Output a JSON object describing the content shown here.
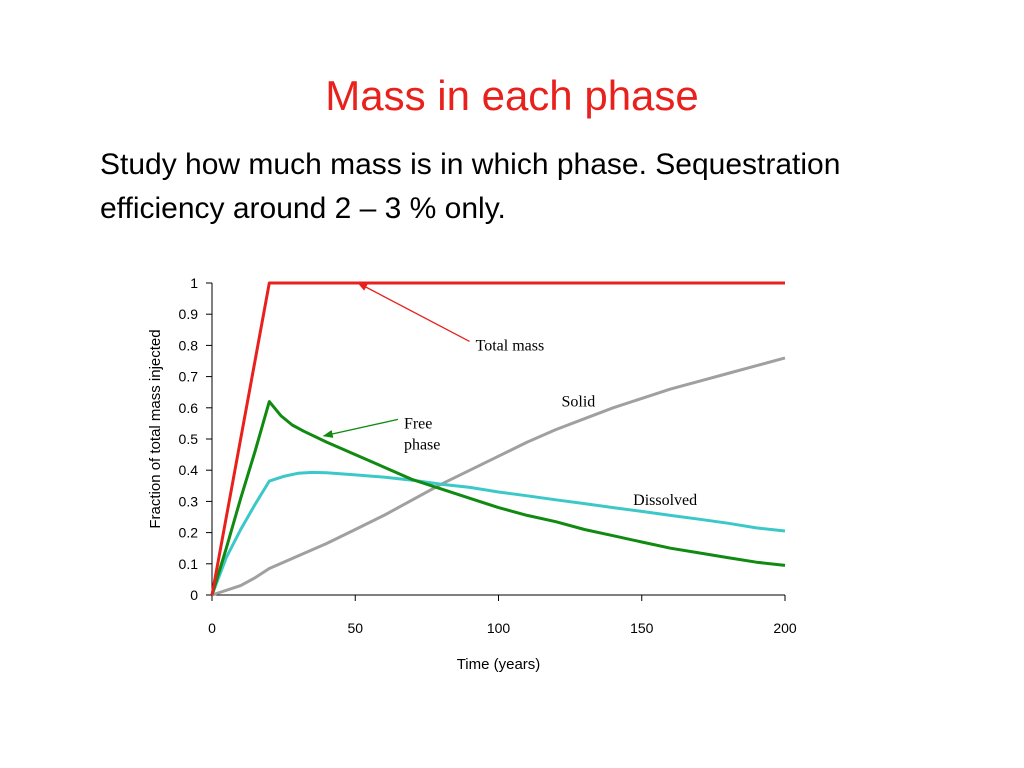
{
  "slide": {
    "title": "Mass in each phase",
    "body_lines": [
      "Study how much mass is in which phase.  Sequestration",
      "efficiency around 2 – 3 % only."
    ]
  },
  "chart_data": {
    "type": "line",
    "title": "",
    "xlabel": "Time (years)",
    "ylabel": "Fraction of total mass injected",
    "xlim": [
      0,
      200
    ],
    "ylim": [
      0,
      1
    ],
    "xticks": [
      0,
      50,
      100,
      150,
      200
    ],
    "yticks": [
      0,
      0.1,
      0.2,
      0.3,
      0.4,
      0.5,
      0.6,
      0.7,
      0.8,
      0.9,
      1
    ],
    "ytick_labels": [
      "0",
      "0.1",
      "0.2",
      "0.3",
      "0.4",
      "0.5",
      "0.6",
      "0.7",
      "0.8",
      "0.9",
      "1"
    ],
    "grid": false,
    "legend": "none",
    "series": [
      {
        "name": "Total mass",
        "color": "#e8211d",
        "points": [
          [
            0,
            0
          ],
          [
            20,
            1
          ],
          [
            200,
            1
          ]
        ]
      },
      {
        "name": "Free phase",
        "color": "#108a10",
        "points": [
          [
            0,
            0
          ],
          [
            5,
            0.15
          ],
          [
            10,
            0.31
          ],
          [
            15,
            0.46
          ],
          [
            20,
            0.62
          ],
          [
            24,
            0.575
          ],
          [
            28,
            0.545
          ],
          [
            32,
            0.525
          ],
          [
            40,
            0.49
          ],
          [
            50,
            0.45
          ],
          [
            60,
            0.41
          ],
          [
            70,
            0.37
          ],
          [
            80,
            0.34
          ],
          [
            90,
            0.31
          ],
          [
            100,
            0.28
          ],
          [
            110,
            0.255
          ],
          [
            120,
            0.235
          ],
          [
            130,
            0.21
          ],
          [
            140,
            0.19
          ],
          [
            150,
            0.17
          ],
          [
            160,
            0.15
          ],
          [
            170,
            0.135
          ],
          [
            180,
            0.12
          ],
          [
            190,
            0.105
          ],
          [
            200,
            0.095
          ]
        ]
      },
      {
        "name": "Dissolved",
        "color": "#3cc8c8",
        "points": [
          [
            0,
            0
          ],
          [
            5,
            0.12
          ],
          [
            10,
            0.21
          ],
          [
            15,
            0.29
          ],
          [
            20,
            0.365
          ],
          [
            25,
            0.38
          ],
          [
            30,
            0.39
          ],
          [
            35,
            0.393
          ],
          [
            40,
            0.392
          ],
          [
            50,
            0.385
          ],
          [
            60,
            0.378
          ],
          [
            70,
            0.368
          ],
          [
            80,
            0.355
          ],
          [
            90,
            0.345
          ],
          [
            100,
            0.33
          ],
          [
            110,
            0.318
          ],
          [
            120,
            0.305
          ],
          [
            130,
            0.293
          ],
          [
            140,
            0.28
          ],
          [
            150,
            0.268
          ],
          [
            160,
            0.255
          ],
          [
            170,
            0.243
          ],
          [
            180,
            0.23
          ],
          [
            190,
            0.215
          ],
          [
            200,
            0.205
          ]
        ]
      },
      {
        "name": "Solid",
        "color": "#a0a0a0",
        "points": [
          [
            0,
            0
          ],
          [
            10,
            0.03
          ],
          [
            15,
            0.055
          ],
          [
            20,
            0.085
          ],
          [
            30,
            0.125
          ],
          [
            40,
            0.165
          ],
          [
            50,
            0.21
          ],
          [
            60,
            0.255
          ],
          [
            70,
            0.305
          ],
          [
            80,
            0.355
          ],
          [
            90,
            0.4
          ],
          [
            100,
            0.445
          ],
          [
            110,
            0.49
          ],
          [
            120,
            0.53
          ],
          [
            130,
            0.565
          ],
          [
            140,
            0.6
          ],
          [
            150,
            0.63
          ],
          [
            160,
            0.66
          ],
          [
            170,
            0.685
          ],
          [
            180,
            0.71
          ],
          [
            190,
            0.735
          ],
          [
            200,
            0.76
          ]
        ]
      }
    ],
    "annotations": [
      {
        "id": "total",
        "lines": [
          "Total mass"
        ],
        "at": [
          92,
          0.8
        ],
        "arrow_to": [
          51,
          1.0
        ],
        "color": "#e8211d"
      },
      {
        "id": "free",
        "lines": [
          "Free",
          "phase"
        ],
        "at": [
          67,
          0.55
        ],
        "arrow_to": [
          39,
          0.51
        ],
        "color": "#108a10"
      },
      {
        "id": "solid",
        "lines": [
          "Solid"
        ],
        "at": [
          122,
          0.62
        ],
        "arrow_to": null,
        "color": "#000000"
      },
      {
        "id": "dissolved",
        "lines": [
          "Dissolved"
        ],
        "at": [
          147,
          0.305
        ],
        "arrow_to": null,
        "color": "#000000"
      }
    ]
  }
}
